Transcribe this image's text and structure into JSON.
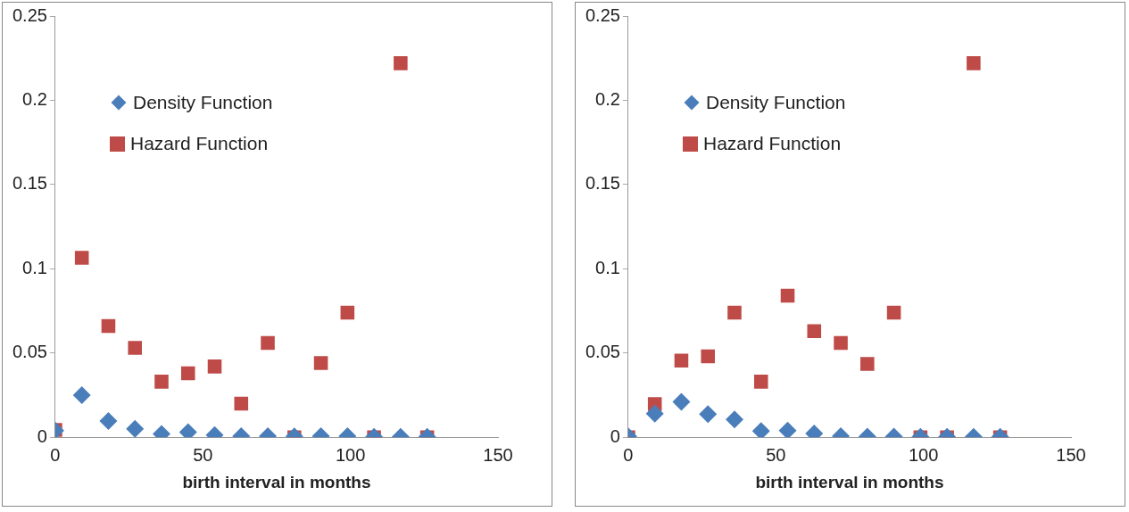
{
  "chart_data": [
    {
      "type": "scatter",
      "xlabel": "birth interval in months",
      "x": [
        0,
        9,
        18,
        27,
        36,
        45,
        54,
        63,
        72,
        81,
        90,
        99,
        108,
        117,
        126
      ],
      "xlim": [
        0,
        150
      ],
      "xticks": [
        0,
        50,
        100,
        150
      ],
      "ylim": [
        0,
        0.25
      ],
      "yticks": [
        0,
        0.05,
        0.1,
        0.15,
        0.2,
        0.25
      ],
      "grid": false,
      "legend": "top left",
      "series": [
        {
          "name": "Density Function",
          "color": "#4a7ebb",
          "marker": "diamond",
          "values": [
            0.004,
            0.025,
            0.0096,
            0.005,
            0.002,
            0.003,
            0.0013,
            0.0007,
            0.0007,
            0.0005,
            0.0007,
            0.0007,
            0.0003,
            0.0003,
            0.0003
          ]
        },
        {
          "name": "Hazard Function",
          "color": "#be4b48",
          "marker": "square",
          "values": [
            0.0043,
            0.1065,
            0.066,
            0.053,
            0.033,
            0.038,
            0.042,
            0.02,
            0.056,
            0,
            0.044,
            0.074,
            0,
            0.222,
            0
          ]
        }
      ]
    },
    {
      "type": "scatter",
      "xlabel": "birth interval in months",
      "x": [
        0,
        9,
        18,
        27,
        36,
        45,
        54,
        63,
        72,
        81,
        90,
        99,
        108,
        117,
        126
      ],
      "xlim": [
        0,
        150
      ],
      "xticks": [
        0,
        50,
        100,
        150
      ],
      "ylim": [
        0,
        0.25
      ],
      "yticks": [
        0,
        0.05,
        0.1,
        0.15,
        0.2,
        0.25
      ],
      "grid": false,
      "legend": "top left",
      "series": [
        {
          "name": "Density Function",
          "color": "#4a7ebb",
          "marker": "diamond",
          "values": [
            0.0005,
            0.014,
            0.021,
            0.0138,
            0.0106,
            0.0037,
            0.004,
            0.0022,
            0.0007,
            0.0004,
            0.0004,
            0.0003,
            0.0003,
            0.0003,
            0.0003
          ]
        },
        {
          "name": "Hazard Function",
          "color": "#be4b48",
          "marker": "square",
          "values": [
            0,
            0.0197,
            0.0455,
            0.048,
            0.074,
            0.033,
            0.084,
            0.063,
            0.056,
            0.0435,
            0.074,
            0,
            0,
            0.222,
            0
          ]
        }
      ]
    }
  ]
}
